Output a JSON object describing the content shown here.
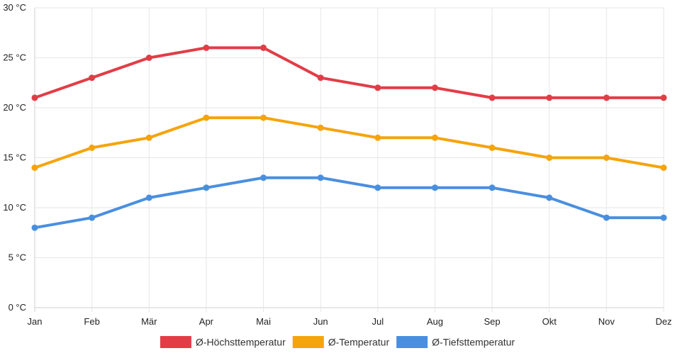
{
  "chart_data": {
    "type": "line",
    "title": "",
    "xlabel": "",
    "ylabel": "",
    "categories": [
      "Jan",
      "Feb",
      "Mär",
      "Apr",
      "Mai",
      "Jun",
      "Jul",
      "Aug",
      "Sep",
      "Okt",
      "Nov",
      "Dez"
    ],
    "ylim": [
      0,
      30
    ],
    "yticks": [
      0,
      5,
      10,
      15,
      20,
      25,
      30
    ],
    "y_unit": "°C",
    "grid": true,
    "legend_position": "bottom",
    "series": [
      {
        "name": "Ø-Höchsttemperatur",
        "color": "#e23d47",
        "values": [
          21,
          23,
          25,
          26,
          26,
          23,
          22,
          22,
          21,
          21,
          21,
          21
        ]
      },
      {
        "name": "Ø-Temperatur",
        "color": "#f5a40c",
        "values": [
          14,
          16,
          17,
          19,
          19,
          18,
          17,
          17,
          16,
          15,
          15,
          14
        ]
      },
      {
        "name": "Ø-Tiefsttemperatur",
        "color": "#4a8fdf",
        "values": [
          8,
          9,
          11,
          12,
          13,
          13,
          12,
          12,
          12,
          11,
          9,
          9
        ]
      }
    ]
  }
}
